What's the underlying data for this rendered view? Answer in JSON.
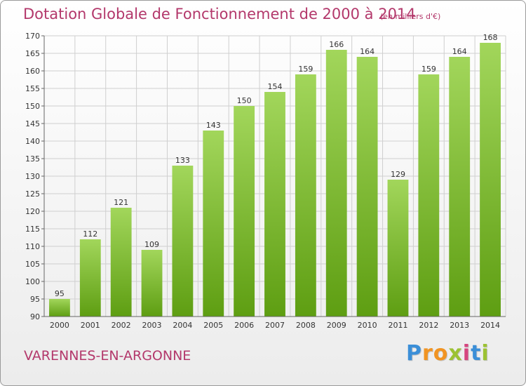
{
  "header": {
    "title": "Dotation Globale de Fonctionnement de 2000 à 2014",
    "subtitle": "(en milliers d'€)"
  },
  "footer": {
    "commune": "VARENNES-EN-ARGONNE",
    "logo_letters": [
      "P",
      "r",
      "o",
      "x",
      "i",
      "t",
      "i"
    ]
  },
  "colors": {
    "bar_top": "#a2d65b",
    "bar_bottom": "#5e9e12",
    "title": "#b3386b",
    "grid": "#cfcfcf",
    "axis": "#666666",
    "logo": [
      "#3b8fd8",
      "#f19422",
      "#f19422",
      "#9cc233",
      "#d6457f",
      "#3b8fd8",
      "#9cc233"
    ]
  },
  "chart_data": {
    "type": "bar",
    "categories": [
      "2000",
      "2001",
      "2002",
      "2003",
      "2004",
      "2005",
      "2006",
      "2007",
      "2008",
      "2009",
      "2010",
      "2011",
      "2012",
      "2013",
      "2014"
    ],
    "values": [
      95,
      112,
      121,
      109,
      133,
      143,
      150,
      154,
      159,
      166,
      164,
      129,
      159,
      164,
      168
    ],
    "title": "Dotation Globale de Fonctionnement de 2000 à 2014",
    "subtitle": "(en milliers d'€)",
    "xlabel": "",
    "ylabel": "",
    "ylim": [
      90,
      170
    ],
    "ytick_step": 5,
    "grid": true,
    "data_labels": true
  }
}
